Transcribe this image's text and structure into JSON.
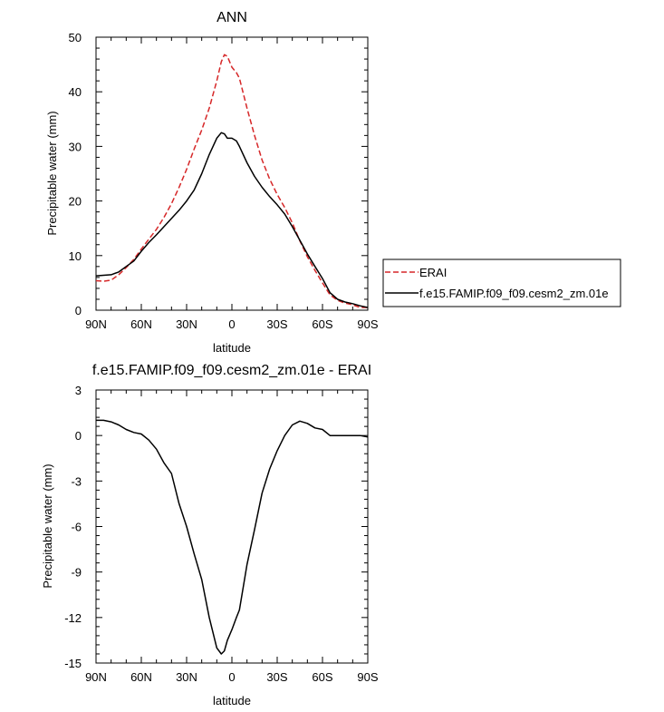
{
  "chart_data": [
    {
      "type": "line",
      "title": "ANN",
      "xlabel": "latitude",
      "ylabel": "Precipitable water (mm)",
      "xlim": [
        90,
        -90
      ],
      "ylim": [
        0,
        50
      ],
      "xticks": [
        90,
        60,
        30,
        0,
        -30,
        -60,
        -90
      ],
      "xtick_labels": [
        "90N",
        "60N",
        "30N",
        "0",
        "30S",
        "60S",
        "90S"
      ],
      "yticks": [
        0,
        10,
        20,
        30,
        40,
        50
      ],
      "ytick_labels": [
        "0",
        "10",
        "20",
        "30",
        "40",
        "50"
      ],
      "grid": false,
      "legend_position": "right",
      "series": [
        {
          "name": "ERAI",
          "color": "#d62728",
          "dash": "dashed",
          "x": [
            90,
            85,
            80,
            75,
            70,
            65,
            60,
            55,
            50,
            45,
            40,
            35,
            30,
            25,
            20,
            15,
            10,
            7,
            5,
            3,
            0,
            -3,
            -5,
            -10,
            -15,
            -20,
            -25,
            -30,
            -35,
            -40,
            -45,
            -50,
            -55,
            -60,
            -65,
            -70,
            -75,
            -80,
            -85,
            -90
          ],
          "y": [
            5.4,
            5.3,
            5.5,
            6.5,
            7.8,
            9.3,
            11.2,
            13,
            14.8,
            17,
            19.5,
            22.5,
            25.8,
            29.5,
            33,
            37,
            42,
            45.5,
            46.8,
            46.5,
            44.5,
            43.5,
            42.5,
            37,
            32,
            27.5,
            24,
            21.2,
            18.8,
            16,
            12.7,
            9.8,
            7.3,
            5,
            2.8,
            1.8,
            1.3,
            1.0,
            0.5,
            0.5
          ]
        },
        {
          "name": "f.e15.FAMIP.f09_f09.cesm2_zm.01e",
          "color": "#000000",
          "dash": "solid",
          "x": [
            90,
            85,
            80,
            75,
            70,
            65,
            60,
            55,
            50,
            45,
            40,
            35,
            30,
            25,
            20,
            15,
            10,
            7,
            5,
            3,
            0,
            -3,
            -5,
            -10,
            -15,
            -20,
            -25,
            -30,
            -35,
            -40,
            -45,
            -50,
            -55,
            -60,
            -65,
            -70,
            -75,
            -80,
            -85,
            -90
          ],
          "y": [
            6.3,
            6.4,
            6.5,
            7,
            8,
            9,
            10.8,
            12.4,
            13.8,
            15.3,
            16.8,
            18.3,
            20,
            22,
            25,
            28.5,
            31.5,
            32.5,
            32.3,
            31.5,
            31.5,
            31,
            30,
            27,
            24.5,
            22.5,
            20.8,
            19.3,
            17.6,
            15.3,
            12.8,
            10.3,
            8,
            5.8,
            3.2,
            2,
            1.5,
            1.2,
            0.8,
            0.5
          ]
        }
      ]
    },
    {
      "type": "line",
      "title": "f.e15.FAMIP.f09_f09.cesm2_zm.01e - ERAI",
      "xlabel": "latitude",
      "ylabel": "Precipitable water (mm)",
      "xlim": [
        90,
        -90
      ],
      "ylim": [
        -15,
        3
      ],
      "xticks": [
        90,
        60,
        30,
        0,
        -30,
        -60,
        -90
      ],
      "xtick_labels": [
        "90N",
        "60N",
        "30N",
        "0",
        "30S",
        "60S",
        "90S"
      ],
      "yticks": [
        3,
        0,
        -3,
        -6,
        -9,
        -12,
        -15
      ],
      "ytick_labels": [
        "3",
        "0",
        "-3",
        "-6",
        "-9",
        "-12",
        "-15"
      ],
      "grid": false,
      "series": [
        {
          "color": "#000000",
          "dash": "solid",
          "x": [
            90,
            85,
            80,
            75,
            70,
            65,
            60,
            55,
            50,
            45,
            40,
            35,
            30,
            25,
            20,
            15,
            10,
            7,
            5,
            3,
            0,
            -3,
            -5,
            -10,
            -15,
            -20,
            -25,
            -30,
            -35,
            -40,
            -45,
            -50,
            -55,
            -60,
            -65,
            -70,
            -75,
            -80,
            -85,
            -90
          ],
          "y": [
            1.0,
            1.0,
            0.9,
            0.7,
            0.4,
            0.2,
            0.1,
            -0.3,
            -0.9,
            -1.8,
            -2.5,
            -4.5,
            -6,
            -7.8,
            -9.5,
            -12,
            -14,
            -14.4,
            -14.2,
            -13.5,
            -12.8,
            -12,
            -11.5,
            -8.5,
            -6.2,
            -3.8,
            -2.2,
            -1,
            0,
            0.7,
            0.95,
            0.8,
            0.5,
            0.4,
            0.0,
            0.0,
            0.0,
            0.0,
            0.0,
            -0.1
          ]
        }
      ]
    }
  ]
}
